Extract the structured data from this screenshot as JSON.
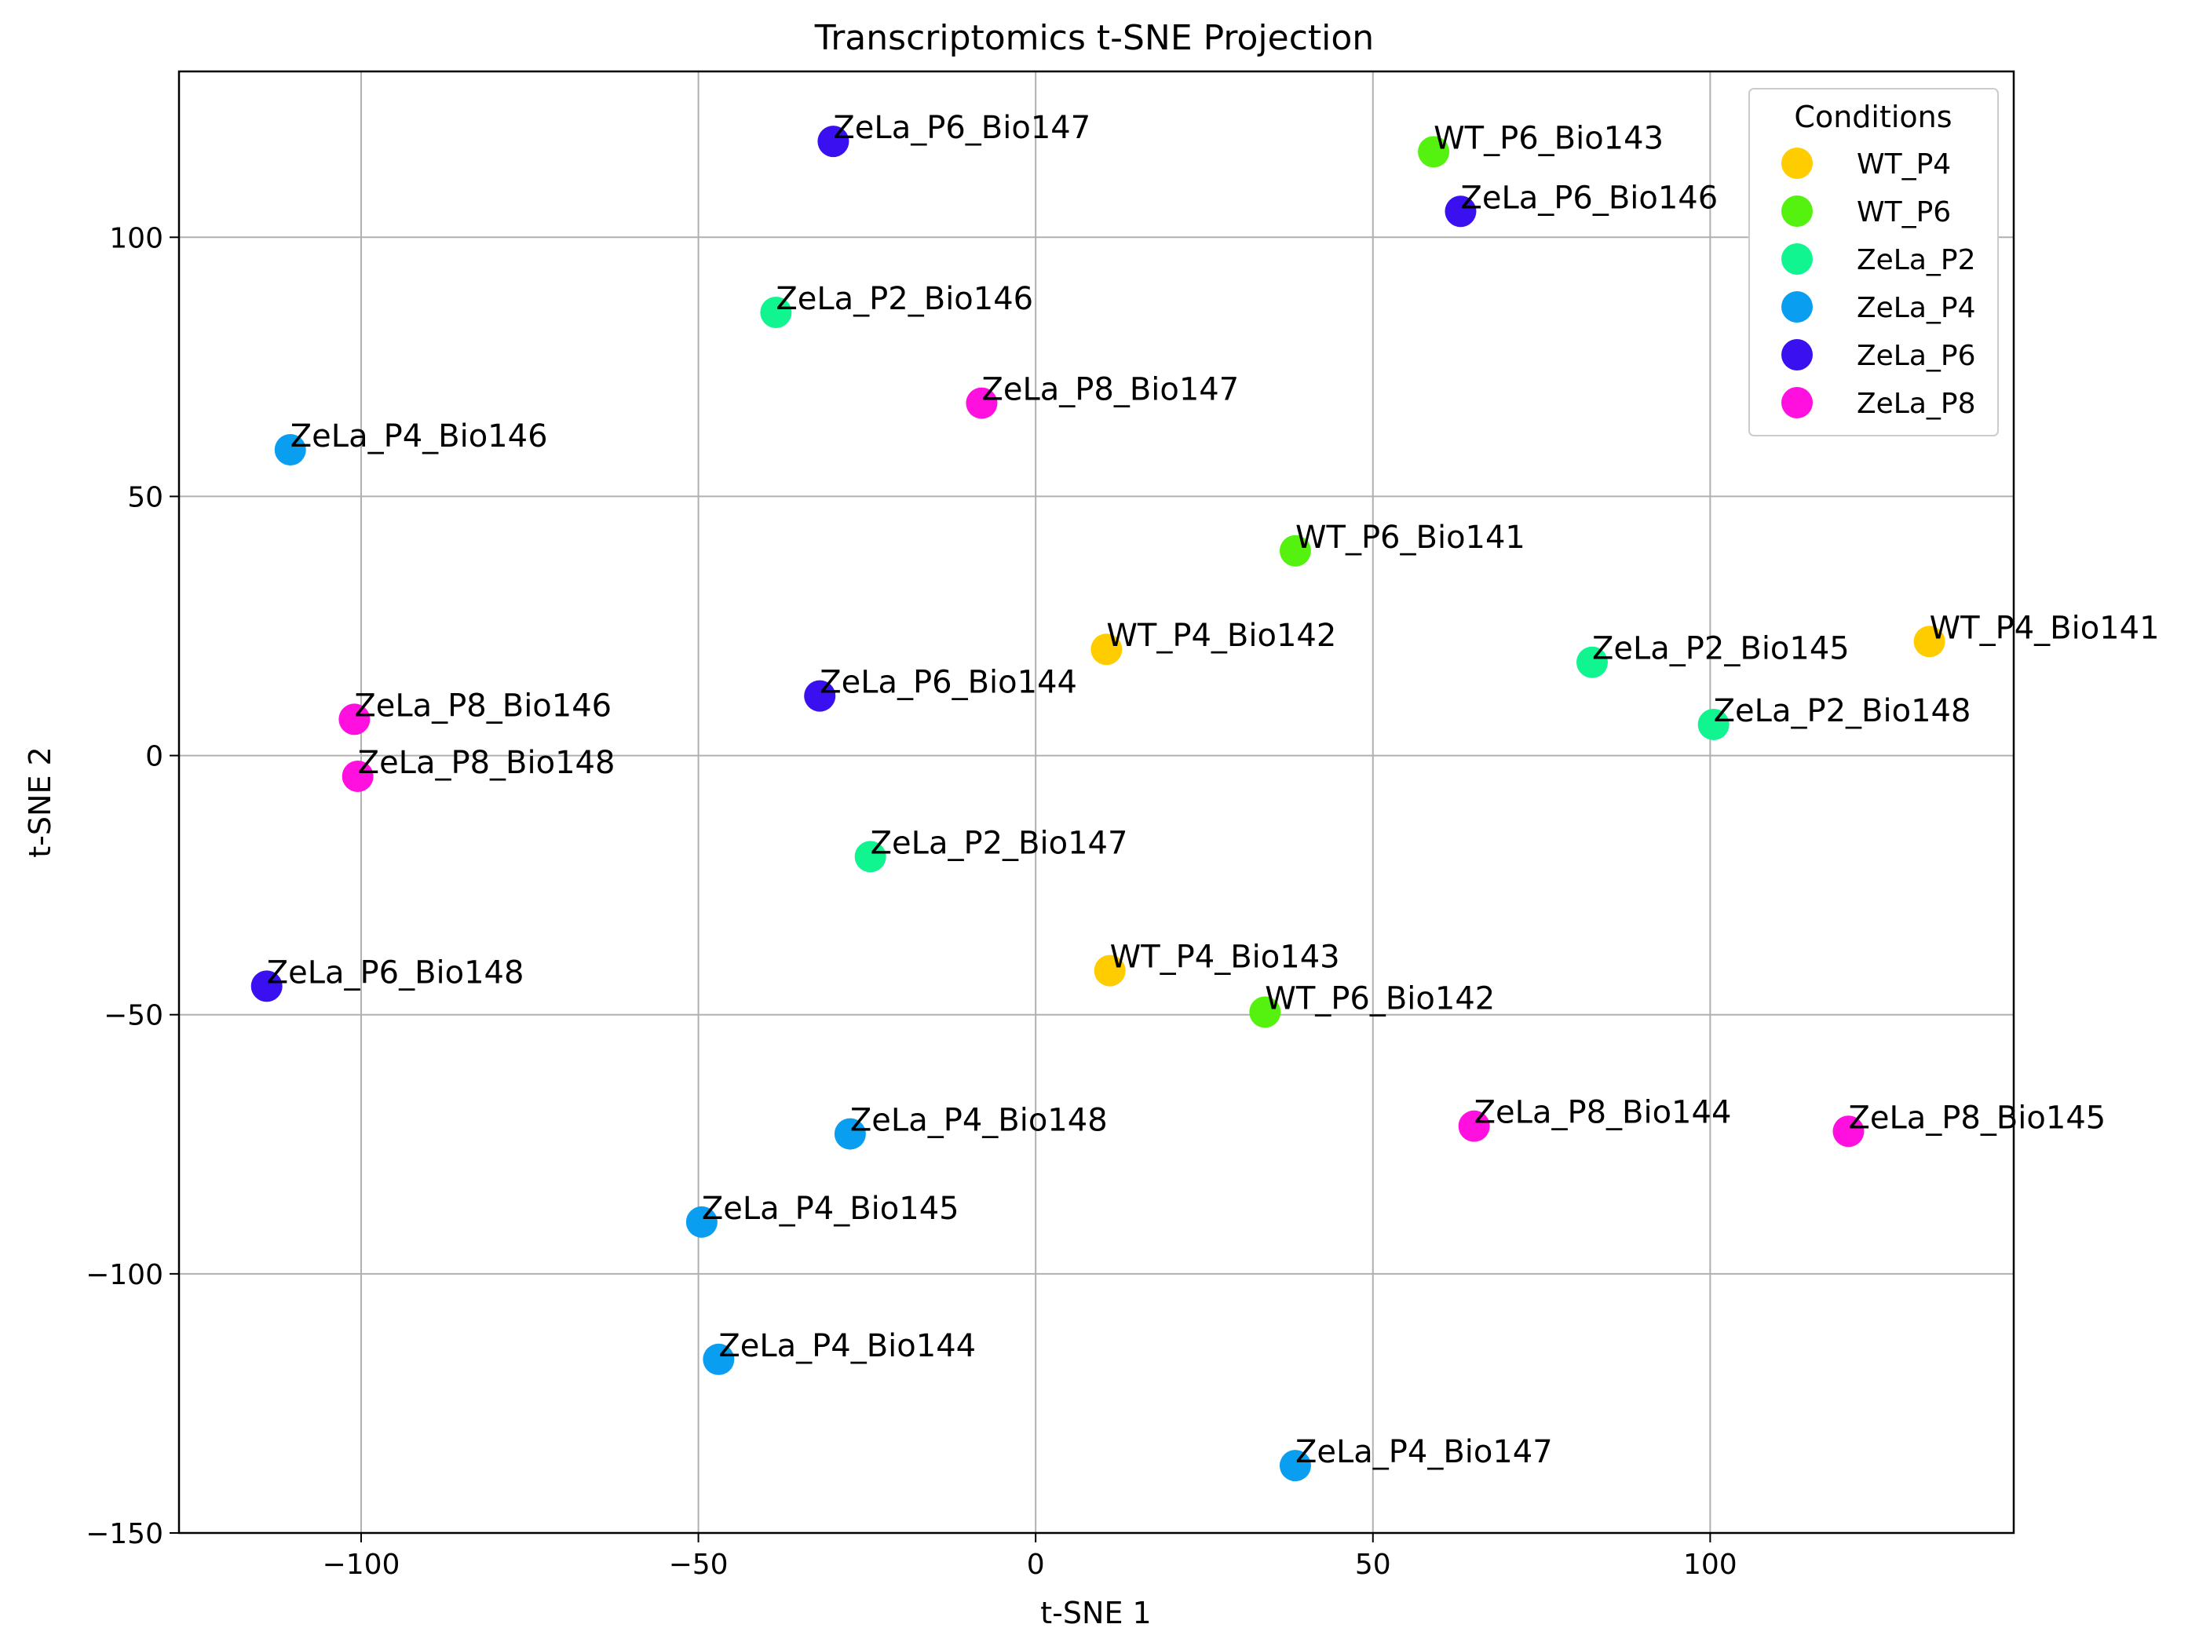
{
  "chart_data": {
    "type": "scatter",
    "title": "Transcriptomics t-SNE Projection",
    "xlabel": "t-SNE 1",
    "ylabel": "t-SNE 2",
    "xlim": [
      -127,
      145
    ],
    "ylim": [
      -150,
      132
    ],
    "xticks": [
      -100,
      -50,
      0,
      50,
      100
    ],
    "xtick_labels": [
      "−100",
      "−50",
      "0",
      "50",
      "100"
    ],
    "yticks": [
      100,
      50,
      0,
      -50,
      -100,
      -150
    ],
    "ytick_labels": [
      "100",
      "50",
      "0",
      "−50",
      "−100",
      "−150"
    ],
    "grid": true,
    "legend": {
      "title": "Conditions",
      "placement": "top-right"
    },
    "series": [
      {
        "name": "WT_P4",
        "color": "#ffcc00",
        "points": [
          {
            "label": "WT_P4_Bio142",
            "x": 10.5,
            "y": 20.5
          },
          {
            "label": "WT_P4_Bio141",
            "x": 132.5,
            "y": 22
          },
          {
            "label": "WT_P4_Bio143",
            "x": 11,
            "y": -41.5
          }
        ]
      },
      {
        "name": "WT_P6",
        "color": "#55f20f",
        "points": [
          {
            "label": "WT_P6_Bio143",
            "x": 59,
            "y": 116.5
          },
          {
            "label": "WT_P6_Bio141",
            "x": 38.5,
            "y": 39.5
          },
          {
            "label": "WT_P6_Bio142",
            "x": 34,
            "y": -49.5
          }
        ]
      },
      {
        "name": "ZeLa_P2",
        "color": "#10f58f",
        "points": [
          {
            "label": "ZeLa_P2_Bio146",
            "x": -38.5,
            "y": 85.5
          },
          {
            "label": "ZeLa_P2_Bio145",
            "x": 82.5,
            "y": 18
          },
          {
            "label": "ZeLa_P2_Bio148",
            "x": 100.5,
            "y": 6
          },
          {
            "label": "ZeLa_P2_Bio147",
            "x": -24.5,
            "y": -19.5
          }
        ]
      },
      {
        "name": "ZeLa_P4",
        "color": "#0a9ef0",
        "points": [
          {
            "label": "ZeLa_P4_Bio146",
            "x": -110.5,
            "y": 59
          },
          {
            "label": "ZeLa_P4_Bio148",
            "x": -27.5,
            "y": -73
          },
          {
            "label": "ZeLa_P4_Bio145",
            "x": -49.5,
            "y": -90
          },
          {
            "label": "ZeLa_P4_Bio144",
            "x": -47,
            "y": -116.5
          },
          {
            "label": "ZeLa_P4_Bio147",
            "x": 38.5,
            "y": -137
          }
        ]
      },
      {
        "name": "ZeLa_P6",
        "color": "#3a10f0",
        "points": [
          {
            "label": "ZeLa_P6_Bio147",
            "x": -30,
            "y": 118.5
          },
          {
            "label": "ZeLa_P6_Bio146",
            "x": 63,
            "y": 105
          },
          {
            "label": "ZeLa_P6_Bio144",
            "x": -32,
            "y": 11.5
          },
          {
            "label": "ZeLa_P6_Bio148",
            "x": -114,
            "y": -44.5
          }
        ]
      },
      {
        "name": "ZeLa_P8",
        "color": "#ff10de",
        "points": [
          {
            "label": "ZeLa_P8_Bio147",
            "x": -8,
            "y": 68
          },
          {
            "label": "ZeLa_P8_Bio146",
            "x": -101,
            "y": 7
          },
          {
            "label": "ZeLa_P8_Bio148",
            "x": -100.5,
            "y": -4
          },
          {
            "label": "ZeLa_P8_Bio144",
            "x": 65,
            "y": -71.5
          },
          {
            "label": "ZeLa_P8_Bio145",
            "x": 120.5,
            "y": -72.5
          }
        ]
      }
    ]
  }
}
